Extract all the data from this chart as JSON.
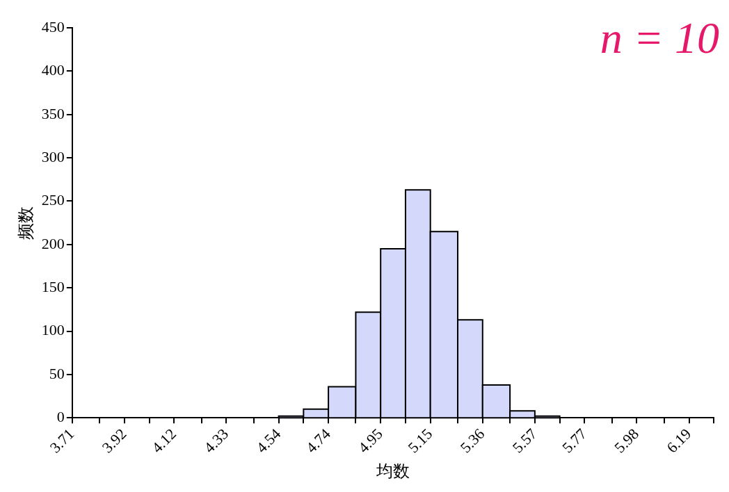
{
  "chart_data": {
    "type": "histogram",
    "xlabel": "均数",
    "ylabel": "频数",
    "annotations": [
      "n = 10"
    ],
    "bins": [
      4.54,
      4.64,
      4.74,
      4.85,
      4.95,
      5.05,
      5.15,
      5.26,
      5.36,
      5.47,
      5.57,
      5.67
    ],
    "values": [
      2,
      10,
      36,
      122,
      195,
      263,
      215,
      113,
      38,
      8,
      2
    ],
    "color": "#d4d8fa",
    "xlim": [
      3.71,
      6.29
    ],
    "xticks": [
      3.71,
      {
        "value": 3.82,
        "label": null
      },
      3.92,
      {
        "value": 4.02,
        "label": null
      },
      4.12,
      {
        "value": 4.23,
        "label": null
      },
      4.33,
      {
        "value": 4.44,
        "label": null
      },
      4.54,
      {
        "value": 4.64,
        "label": null
      },
      4.74,
      {
        "value": 4.85,
        "label": null
      },
      4.95,
      {
        "value": 5.05,
        "label": null
      },
      5.15,
      {
        "value": 5.26,
        "label": null
      },
      5.36,
      {
        "value": 5.47,
        "label": null
      },
      5.57,
      {
        "value": 5.67,
        "label": null
      },
      5.77,
      {
        "value": 5.88,
        "label": null
      },
      5.98,
      {
        "value": 6.09,
        "label": null
      },
      6.19,
      {
        "value": 6.29,
        "label": null
      }
    ],
    "ylim": [
      0,
      450
    ],
    "yticks": [
      0,
      50,
      100,
      150,
      200,
      250,
      300,
      350,
      400,
      450
    ],
    "grid": false,
    "legend": false
  }
}
